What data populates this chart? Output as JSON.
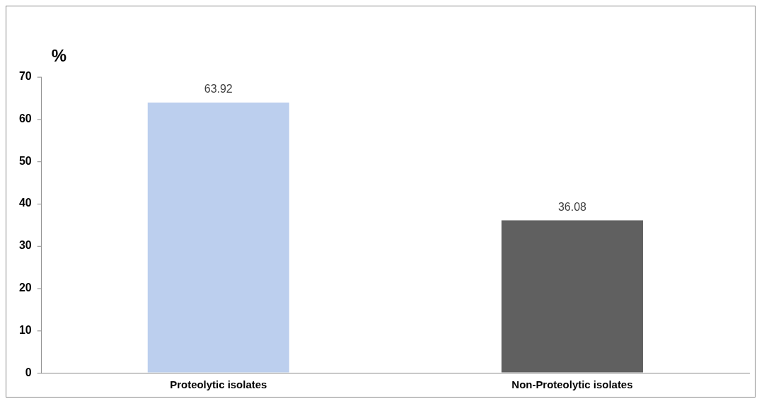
{
  "chart_data": {
    "type": "bar",
    "ylabel": "%",
    "categories": [
      "Proteolytic isolates",
      "Non-Proteolytic isolates"
    ],
    "values": [
      63.92,
      36.08
    ],
    "colors": [
      "#bccfee",
      "#606060"
    ],
    "ylim": [
      0,
      70
    ],
    "yticks": [
      0,
      10,
      20,
      30,
      40,
      50,
      60,
      70
    ],
    "grid": false,
    "legend": false,
    "data_labels": true
  }
}
